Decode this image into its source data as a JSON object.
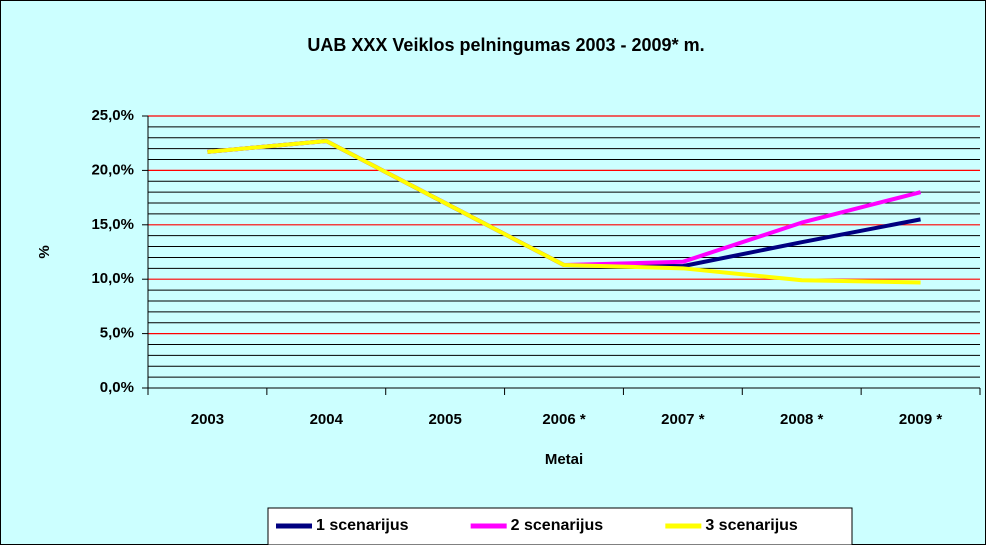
{
  "chart_data": {
    "type": "line",
    "title": "UAB XXX Veiklos pelningumas 2003 - 2009* m.",
    "x_label": "Metai",
    "y_label": "%",
    "categories": [
      "2003",
      "2004",
      "2005",
      "2006 *",
      "2007 *",
      "2008 *",
      "2009 *"
    ],
    "series": [
      {
        "name": "1 scenarijus",
        "color": "#000080",
        "values": [
          21.7,
          22.7,
          17.0,
          11.3,
          11.2,
          13.4,
          15.5
        ]
      },
      {
        "name": "2 scenarijus",
        "color": "#ff00ff",
        "values": [
          21.7,
          22.7,
          17.0,
          11.3,
          11.6,
          15.2,
          18.0
        ]
      },
      {
        "name": "3 scenarijus",
        "color": "#ffff00",
        "values": [
          21.7,
          22.7,
          17.0,
          11.3,
          11.0,
          9.9,
          9.7
        ]
      }
    ],
    "ylim": [
      0,
      25
    ],
    "yticks": [
      {
        "value": 0,
        "label": "0,0%"
      },
      {
        "value": 5,
        "label": "5,0%"
      },
      {
        "value": 10,
        "label": "10,0%"
      },
      {
        "value": 15,
        "label": "15,0%"
      },
      {
        "value": 20,
        "label": "20,0%"
      },
      {
        "value": 25,
        "label": "25,0%"
      }
    ],
    "grid": true,
    "grid_color": "#ff0000",
    "legend": "bottom"
  }
}
